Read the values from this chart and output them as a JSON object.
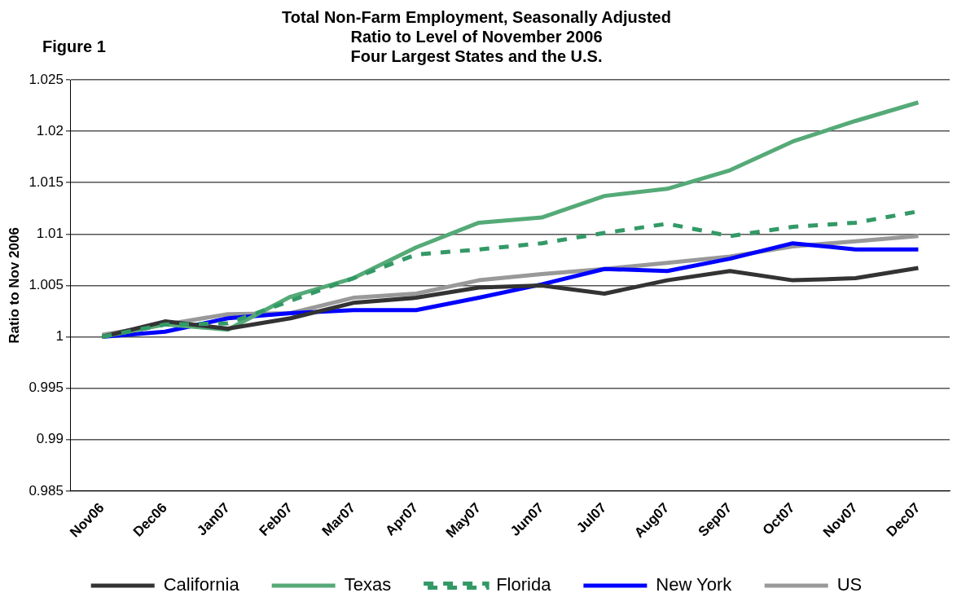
{
  "chart_data": {
    "type": "line",
    "title": "Total Non-Farm Employment, Seasonally Adjusted\nRatio to Level of November 2006\nFour Largest States and the U.S.",
    "ylabel": "Ratio to Nov 2006",
    "annotations": [
      "Figure 1"
    ],
    "categories": [
      "Nov06",
      "Dec06",
      "Jan07",
      "Feb07",
      "Mar07",
      "Apr07",
      "May07",
      "Jun07",
      "Jul07",
      "Aug07",
      "Sep07",
      "Oct07",
      "Nov07",
      "Dec07"
    ],
    "series": [
      {
        "name": "California",
        "color": "#333333",
        "values": [
          1.0,
          1.0015,
          1.0008,
          1.0018,
          1.0033,
          1.0038,
          1.0048,
          1.005,
          1.0042,
          1.0055,
          1.0064,
          1.0055,
          1.0057,
          1.0067
        ]
      },
      {
        "name": "Texas",
        "color": "#55aa77",
        "values": [
          1.0,
          1.0012,
          1.0007,
          1.0039,
          1.0057,
          1.0087,
          1.0111,
          1.0116,
          1.0137,
          1.0144,
          1.0162,
          1.019,
          1.021,
          1.0228
        ]
      },
      {
        "name": "Florida",
        "color": "#339966",
        "line_style": "dashed",
        "values": [
          1.0,
          1.0012,
          1.0013,
          1.0035,
          1.0057,
          1.008,
          1.0085,
          1.0091,
          1.0101,
          1.011,
          1.0098,
          1.0107,
          1.0111,
          1.0122
        ]
      },
      {
        "name": "New York",
        "color": "#0000ff",
        "values": [
          1.0,
          1.0005,
          1.0018,
          1.0023,
          1.0026,
          1.0026,
          1.0038,
          1.0051,
          1.0066,
          1.0064,
          1.0076,
          1.0091,
          1.0085,
          1.0085
        ]
      },
      {
        "name": "US",
        "color": "#999999",
        "values": [
          1.0002,
          1.0012,
          1.0022,
          1.0023,
          1.0038,
          1.0042,
          1.0055,
          1.0061,
          1.0066,
          1.0072,
          1.0078,
          1.0088,
          1.0093,
          1.0098
        ]
      }
    ],
    "ylim": [
      0.985,
      1.025
    ],
    "yticks": [
      0.985,
      0.99,
      0.995,
      1,
      1.005,
      1.01,
      1.015,
      1.02,
      1.025
    ],
    "grid": "y",
    "legend": "bottom",
    "marker": "none",
    "line_style": "solid"
  }
}
